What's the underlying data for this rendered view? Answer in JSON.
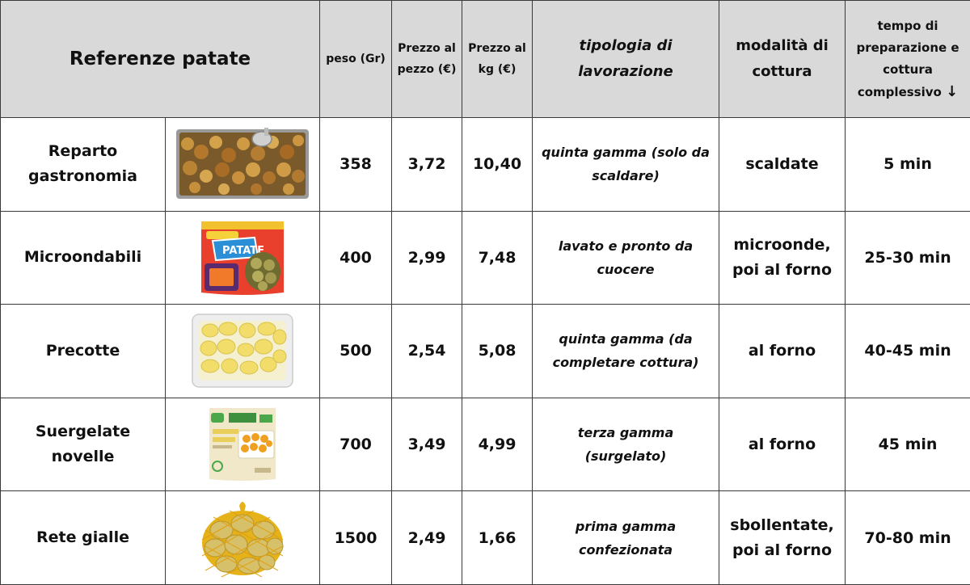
{
  "header": {
    "title": "Referenze patate",
    "peso": "peso (Gr)",
    "prezzo_pezzo": [
      "Prezzo al",
      "pezzo (€)"
    ],
    "prezzo_kg": [
      "Prezzo al",
      "kg (€)"
    ],
    "tipologia": [
      "tipologia di",
      "lavorazione"
    ],
    "modalita": [
      "modalità di",
      "cottura"
    ],
    "tempo": [
      "tempo di",
      "preparazione e",
      "cottura",
      "complessivo"
    ],
    "sort_icon": "arrow-down-icon"
  },
  "rows": [
    {
      "name": [
        "Reparto",
        "gastronomia"
      ],
      "image": "roasted-potatoes-tray-image",
      "peso": "358",
      "prezzo_pezzo": "3,72",
      "prezzo_kg": "10,40",
      "tipologia": [
        "quinta gamma (solo da",
        "scaldare)"
      ],
      "modalita": [
        "scaldate"
      ],
      "tempo": "5 min"
    },
    {
      "name": [
        "Microondabili"
      ],
      "image": "microwave-potato-bag-image",
      "peso": "400",
      "prezzo_pezzo": "2,99",
      "prezzo_kg": "7,48",
      "tipologia": [
        "lavato e pronto da",
        "cuocere"
      ],
      "modalita": [
        "microonde,",
        "poi al forno"
      ],
      "tempo": "25-30 min"
    },
    {
      "name": [
        "Precotte"
      ],
      "image": "precooked-potatoes-pack-image",
      "peso": "500",
      "prezzo_pezzo": "2,54",
      "prezzo_kg": "5,08",
      "tipologia": [
        "quinta gamma (da",
        "completare cottura)"
      ],
      "modalita": [
        "al forno"
      ],
      "tempo": "40-45 min"
    },
    {
      "name": [
        "Suergelate novelle"
      ],
      "image": "frozen-potatoes-bag-image",
      "peso": "700",
      "prezzo_pezzo": "3,49",
      "prezzo_kg": "4,99",
      "tipologia": [
        "terza gamma",
        "(surgelato)"
      ],
      "modalita": [
        "al forno"
      ],
      "tempo": "45 min"
    },
    {
      "name": [
        "Rete gialle"
      ],
      "image": "potato-net-bag-image",
      "peso": "1500",
      "prezzo_pezzo": "2,49",
      "prezzo_kg": "1,66",
      "tipologia": [
        "prima gamma",
        "confezionata"
      ],
      "modalita": [
        "sbollentate,",
        "poi al forno"
      ],
      "tempo": "70-80 min"
    }
  ]
}
